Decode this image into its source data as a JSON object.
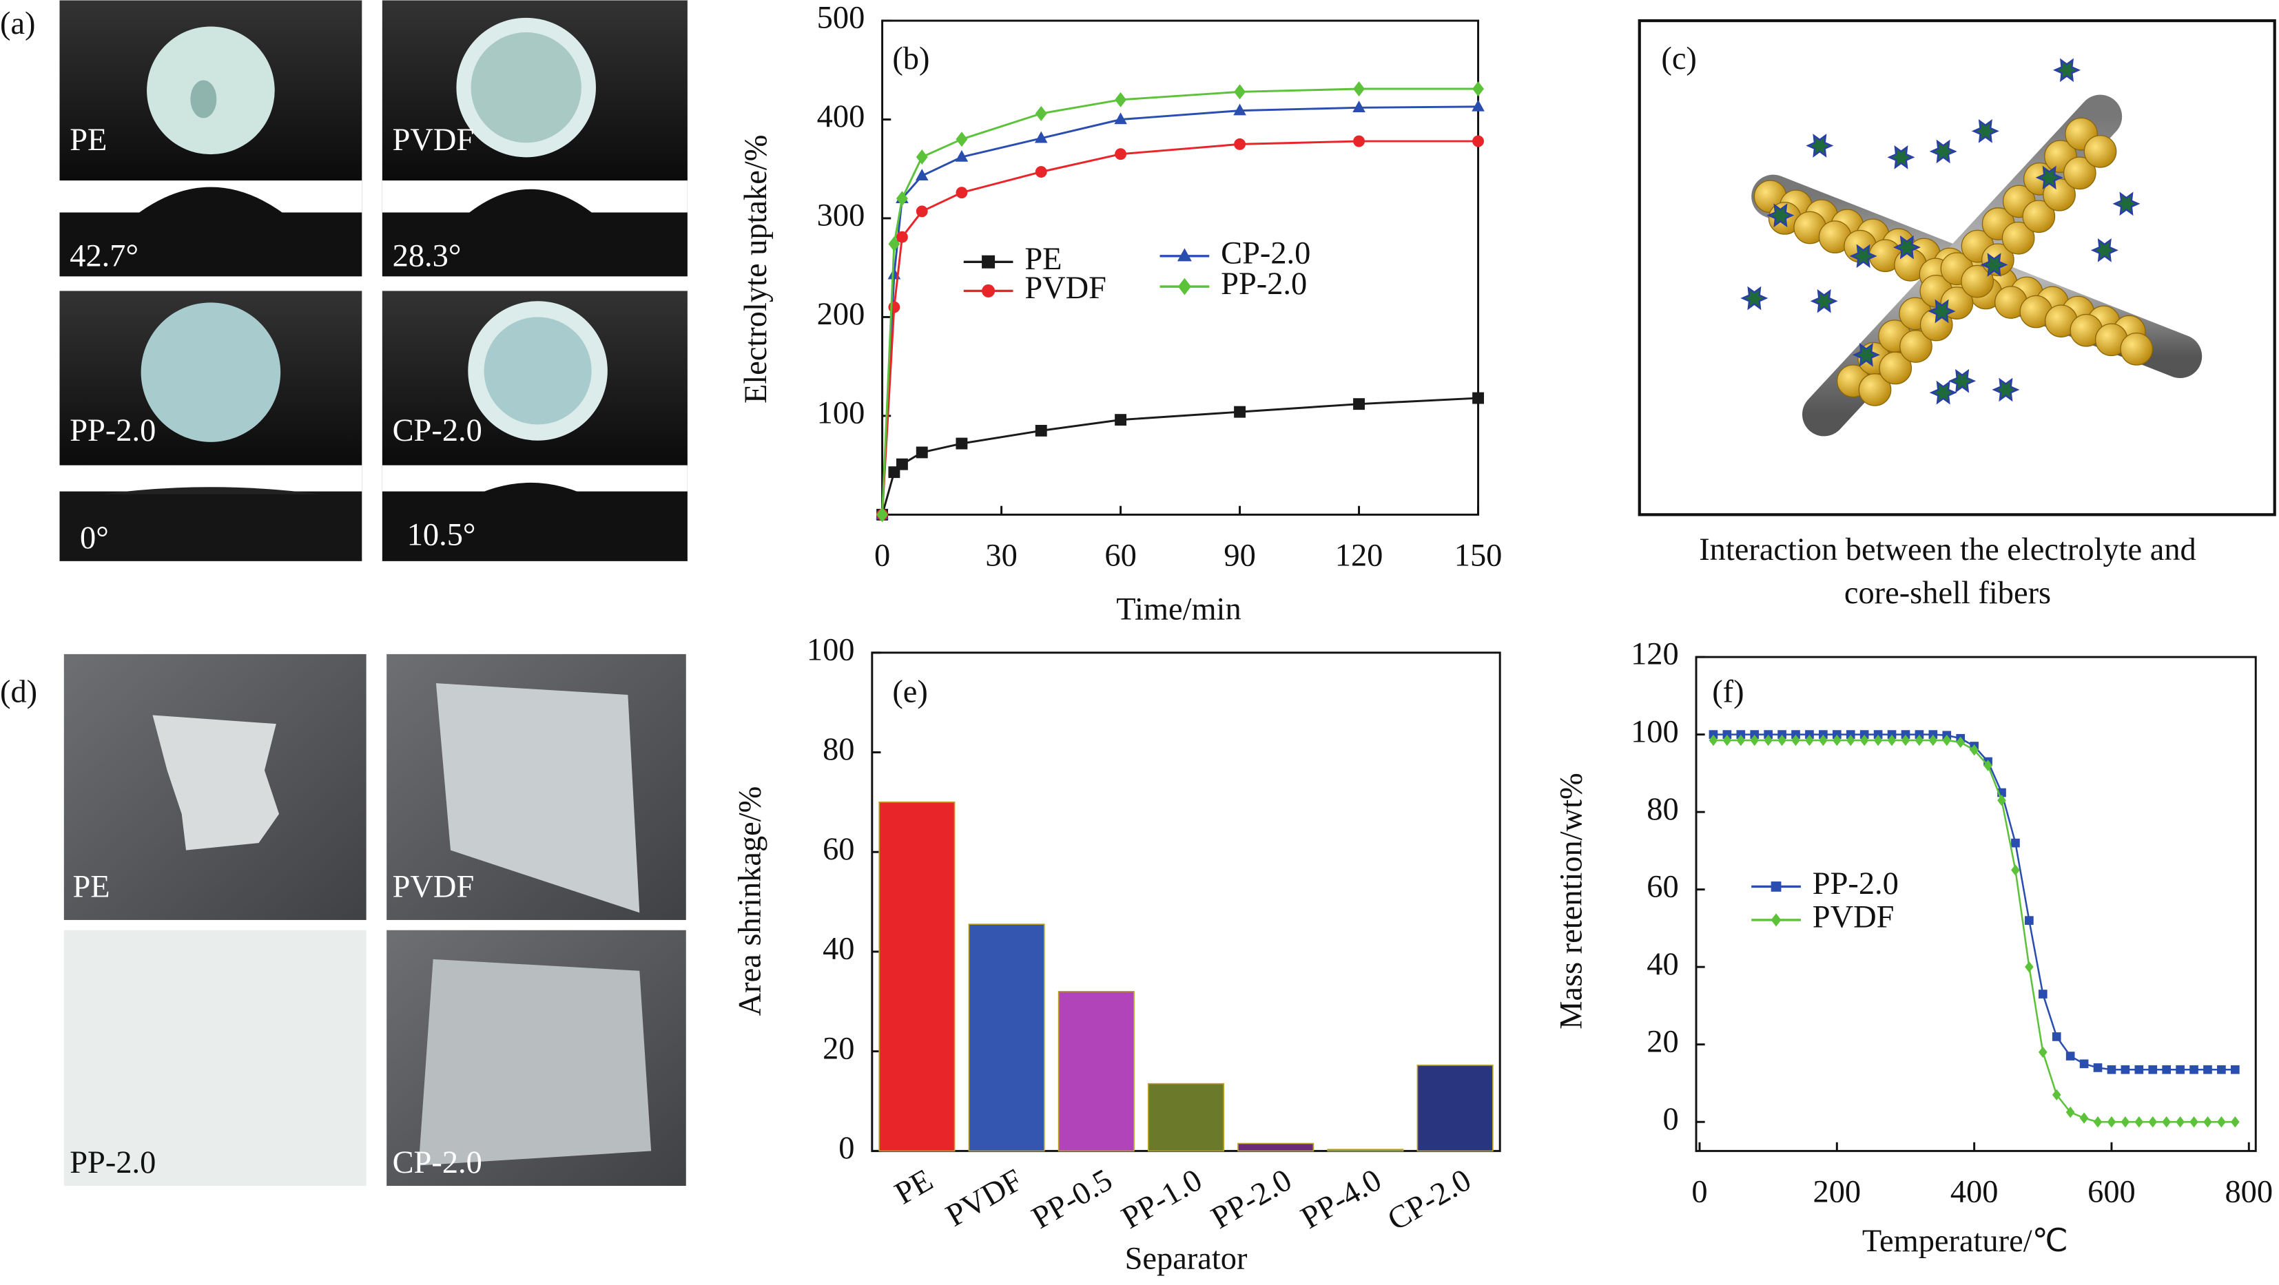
{
  "panel_a": {
    "label": "(a)",
    "samples": [
      {
        "name": "PE",
        "angle": "42.7°"
      },
      {
        "name": "PVDF",
        "angle": "28.3°"
      },
      {
        "name": "PP-2.0",
        "angle": "0°"
      },
      {
        "name": "CP-2.0",
        "angle": "10.5°"
      }
    ]
  },
  "panel_c": {
    "label": "(c)",
    "caption": [
      "Interaction between the electrolyte and",
      "core-shell fibers"
    ]
  },
  "panel_d": {
    "label": "(d)",
    "samples": [
      "PE",
      "PVDF",
      "PP-2.0",
      "CP-2.0"
    ]
  },
  "chart_data": [
    {
      "type": "line",
      "label": "(b)",
      "x_label": "Time/min",
      "y_label": "Electrolyte uptake/%",
      "x": [
        0,
        3,
        5,
        10,
        20,
        40,
        60,
        90,
        120,
        150
      ],
      "xlim": [
        0,
        150
      ],
      "xticks": [
        0,
        30,
        60,
        90,
        120,
        150
      ],
      "ylim": [
        0,
        500
      ],
      "yticks": [
        100,
        200,
        300,
        400,
        500
      ],
      "legend": "center",
      "series": [
        {
          "name": "PE",
          "color": "#1a1a1a",
          "marker": "square",
          "values": [
            0,
            43,
            51,
            63,
            72,
            85,
            96,
            104,
            112,
            118
          ]
        },
        {
          "name": "CP-2.0",
          "color": "#2a4db0",
          "marker": "triangle",
          "values": [
            0,
            243,
            320,
            343,
            362,
            381,
            400,
            409,
            412,
            413
          ]
        },
        {
          "name": "PVDF",
          "color": "#e8262a",
          "marker": "circle",
          "values": [
            0,
            210,
            281,
            307,
            326,
            347,
            365,
            375,
            378,
            378
          ]
        },
        {
          "name": "PP-2.0",
          "color": "#5cc23a",
          "marker": "diamond",
          "values": [
            0,
            274,
            320,
            362,
            380,
            406,
            420,
            428,
            431,
            431
          ]
        }
      ]
    },
    {
      "type": "bar",
      "label": "(e)",
      "x_label": "Separator",
      "y_label": "Area shrinkage/%",
      "categories": [
        "PE",
        "PVDF",
        "PP-0.5",
        "PP-1.0",
        "PP-2.0",
        "PP-4.0",
        "CP-2.0"
      ],
      "values": [
        70,
        45.5,
        32,
        13.5,
        1.5,
        0.3,
        17.2
      ],
      "colors": [
        "#e8262a",
        "#3556b0",
        "#b044b8",
        "#6a7a2a",
        "#6a2a7a",
        "#2a7a6a",
        "#2a3580"
      ],
      "ylim": [
        0,
        100
      ],
      "yticks": [
        0,
        20,
        40,
        60,
        80,
        100
      ]
    },
    {
      "type": "line",
      "label": "(f)",
      "x_label": "Temperature/℃",
      "y_label": "Mass retention/wt%",
      "x": [
        20,
        40,
        60,
        80,
        100,
        120,
        140,
        160,
        180,
        200,
        220,
        240,
        260,
        280,
        300,
        320,
        340,
        360,
        380,
        400,
        420,
        440,
        460,
        480,
        500,
        520,
        540,
        560,
        580,
        600,
        620,
        640,
        660,
        680,
        700,
        720,
        740,
        760,
        780
      ],
      "xlim": [
        -5,
        810
      ],
      "xticks": [
        0,
        200,
        400,
        600,
        800
      ],
      "ylim": [
        -7.5,
        120
      ],
      "yticks": [
        0,
        20,
        40,
        60,
        80,
        100,
        120
      ],
      "legend": "center left",
      "series": [
        {
          "name": "PP-2.0",
          "color": "#2a4db0",
          "marker": "square",
          "values": [
            100,
            100,
            100,
            100,
            100,
            100,
            100,
            100,
            100,
            100,
            100,
            100,
            100,
            100,
            100,
            100,
            100,
            99.8,
            99,
            97,
            93,
            85,
            72,
            52,
            33,
            22,
            17,
            15,
            14,
            13.5,
            13.5,
            13.5,
            13.5,
            13.5,
            13.5,
            13.5,
            13.5,
            13.5,
            13.5
          ]
        },
        {
          "name": "PVDF",
          "color": "#5cc23a",
          "marker": "diamond",
          "values": [
            98.5,
            98.5,
            98.5,
            98.5,
            98.5,
            98.5,
            98.5,
            98.5,
            98.5,
            98.5,
            98.5,
            98.5,
            98.5,
            98.5,
            98.5,
            98.5,
            98.5,
            98.5,
            98,
            96,
            92,
            83,
            65,
            40,
            18,
            7,
            2.5,
            1,
            0,
            0,
            0,
            0,
            0,
            0,
            0,
            0,
            0,
            0,
            0
          ]
        }
      ]
    }
  ]
}
